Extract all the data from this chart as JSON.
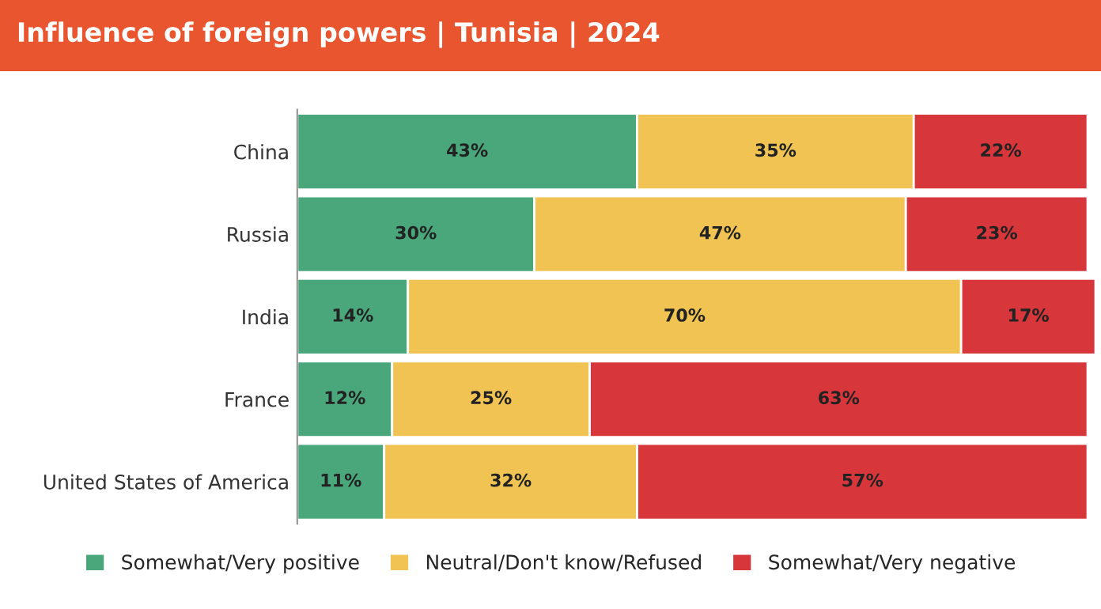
{
  "chart_data": {
    "type": "bar",
    "orientation": "horizontal",
    "stacked": true,
    "title": "Influence of foreign powers | Tunisia | 2024",
    "categories": [
      "China",
      "Russia",
      "India",
      "France",
      "United States of America"
    ],
    "series": [
      {
        "name": "Somewhat/Very positive",
        "color": "#4aa77c",
        "values": [
          43,
          30,
          14,
          12,
          11
        ],
        "value_labels": [
          "43%",
          "30%",
          "14%",
          "12%",
          "11%"
        ]
      },
      {
        "name": "Neutral/Don't know/Refused",
        "color": "#f1c353",
        "values": [
          35,
          47,
          70,
          25,
          32
        ],
        "value_labels": [
          "35%",
          "47%",
          "70%",
          "25%",
          "32%"
        ]
      },
      {
        "name": "Somewhat/Very negative",
        "color": "#d7363b",
        "values": [
          22,
          23,
          17,
          63,
          57
        ],
        "value_labels": [
          "22%",
          "23%",
          "17%",
          "63%",
          "57%"
        ]
      }
    ],
    "legend": "bottom",
    "grid": false
  }
}
